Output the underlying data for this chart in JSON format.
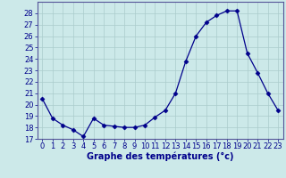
{
  "hours": [
    0,
    1,
    2,
    3,
    4,
    5,
    6,
    7,
    8,
    9,
    10,
    11,
    12,
    13,
    14,
    15,
    16,
    17,
    18,
    19,
    20,
    21,
    22,
    23
  ],
  "temperatures": [
    20.5,
    18.8,
    18.2,
    17.8,
    17.2,
    18.8,
    18.2,
    18.1,
    18.0,
    18.0,
    18.2,
    18.9,
    19.5,
    21.0,
    23.8,
    26.0,
    27.2,
    27.8,
    28.2,
    28.2,
    24.5,
    22.8,
    21.0,
    19.5
  ],
  "line_color": "#00008B",
  "marker": "D",
  "marker_size": 2.5,
  "bg_color": "#cce9e9",
  "grid_color": "#aacccc",
  "xlabel": "Graphe des températures (°c)",
  "xlabel_color": "#00008B",
  "xlabel_fontsize": 7,
  "tick_color": "#00008B",
  "tick_fontsize": 6,
  "ylim": [
    17,
    29
  ],
  "yticks": [
    17,
    18,
    19,
    20,
    21,
    22,
    23,
    24,
    25,
    26,
    27,
    28
  ],
  "xlim": [
    -0.5,
    23.5
  ],
  "spine_color": "#555599"
}
